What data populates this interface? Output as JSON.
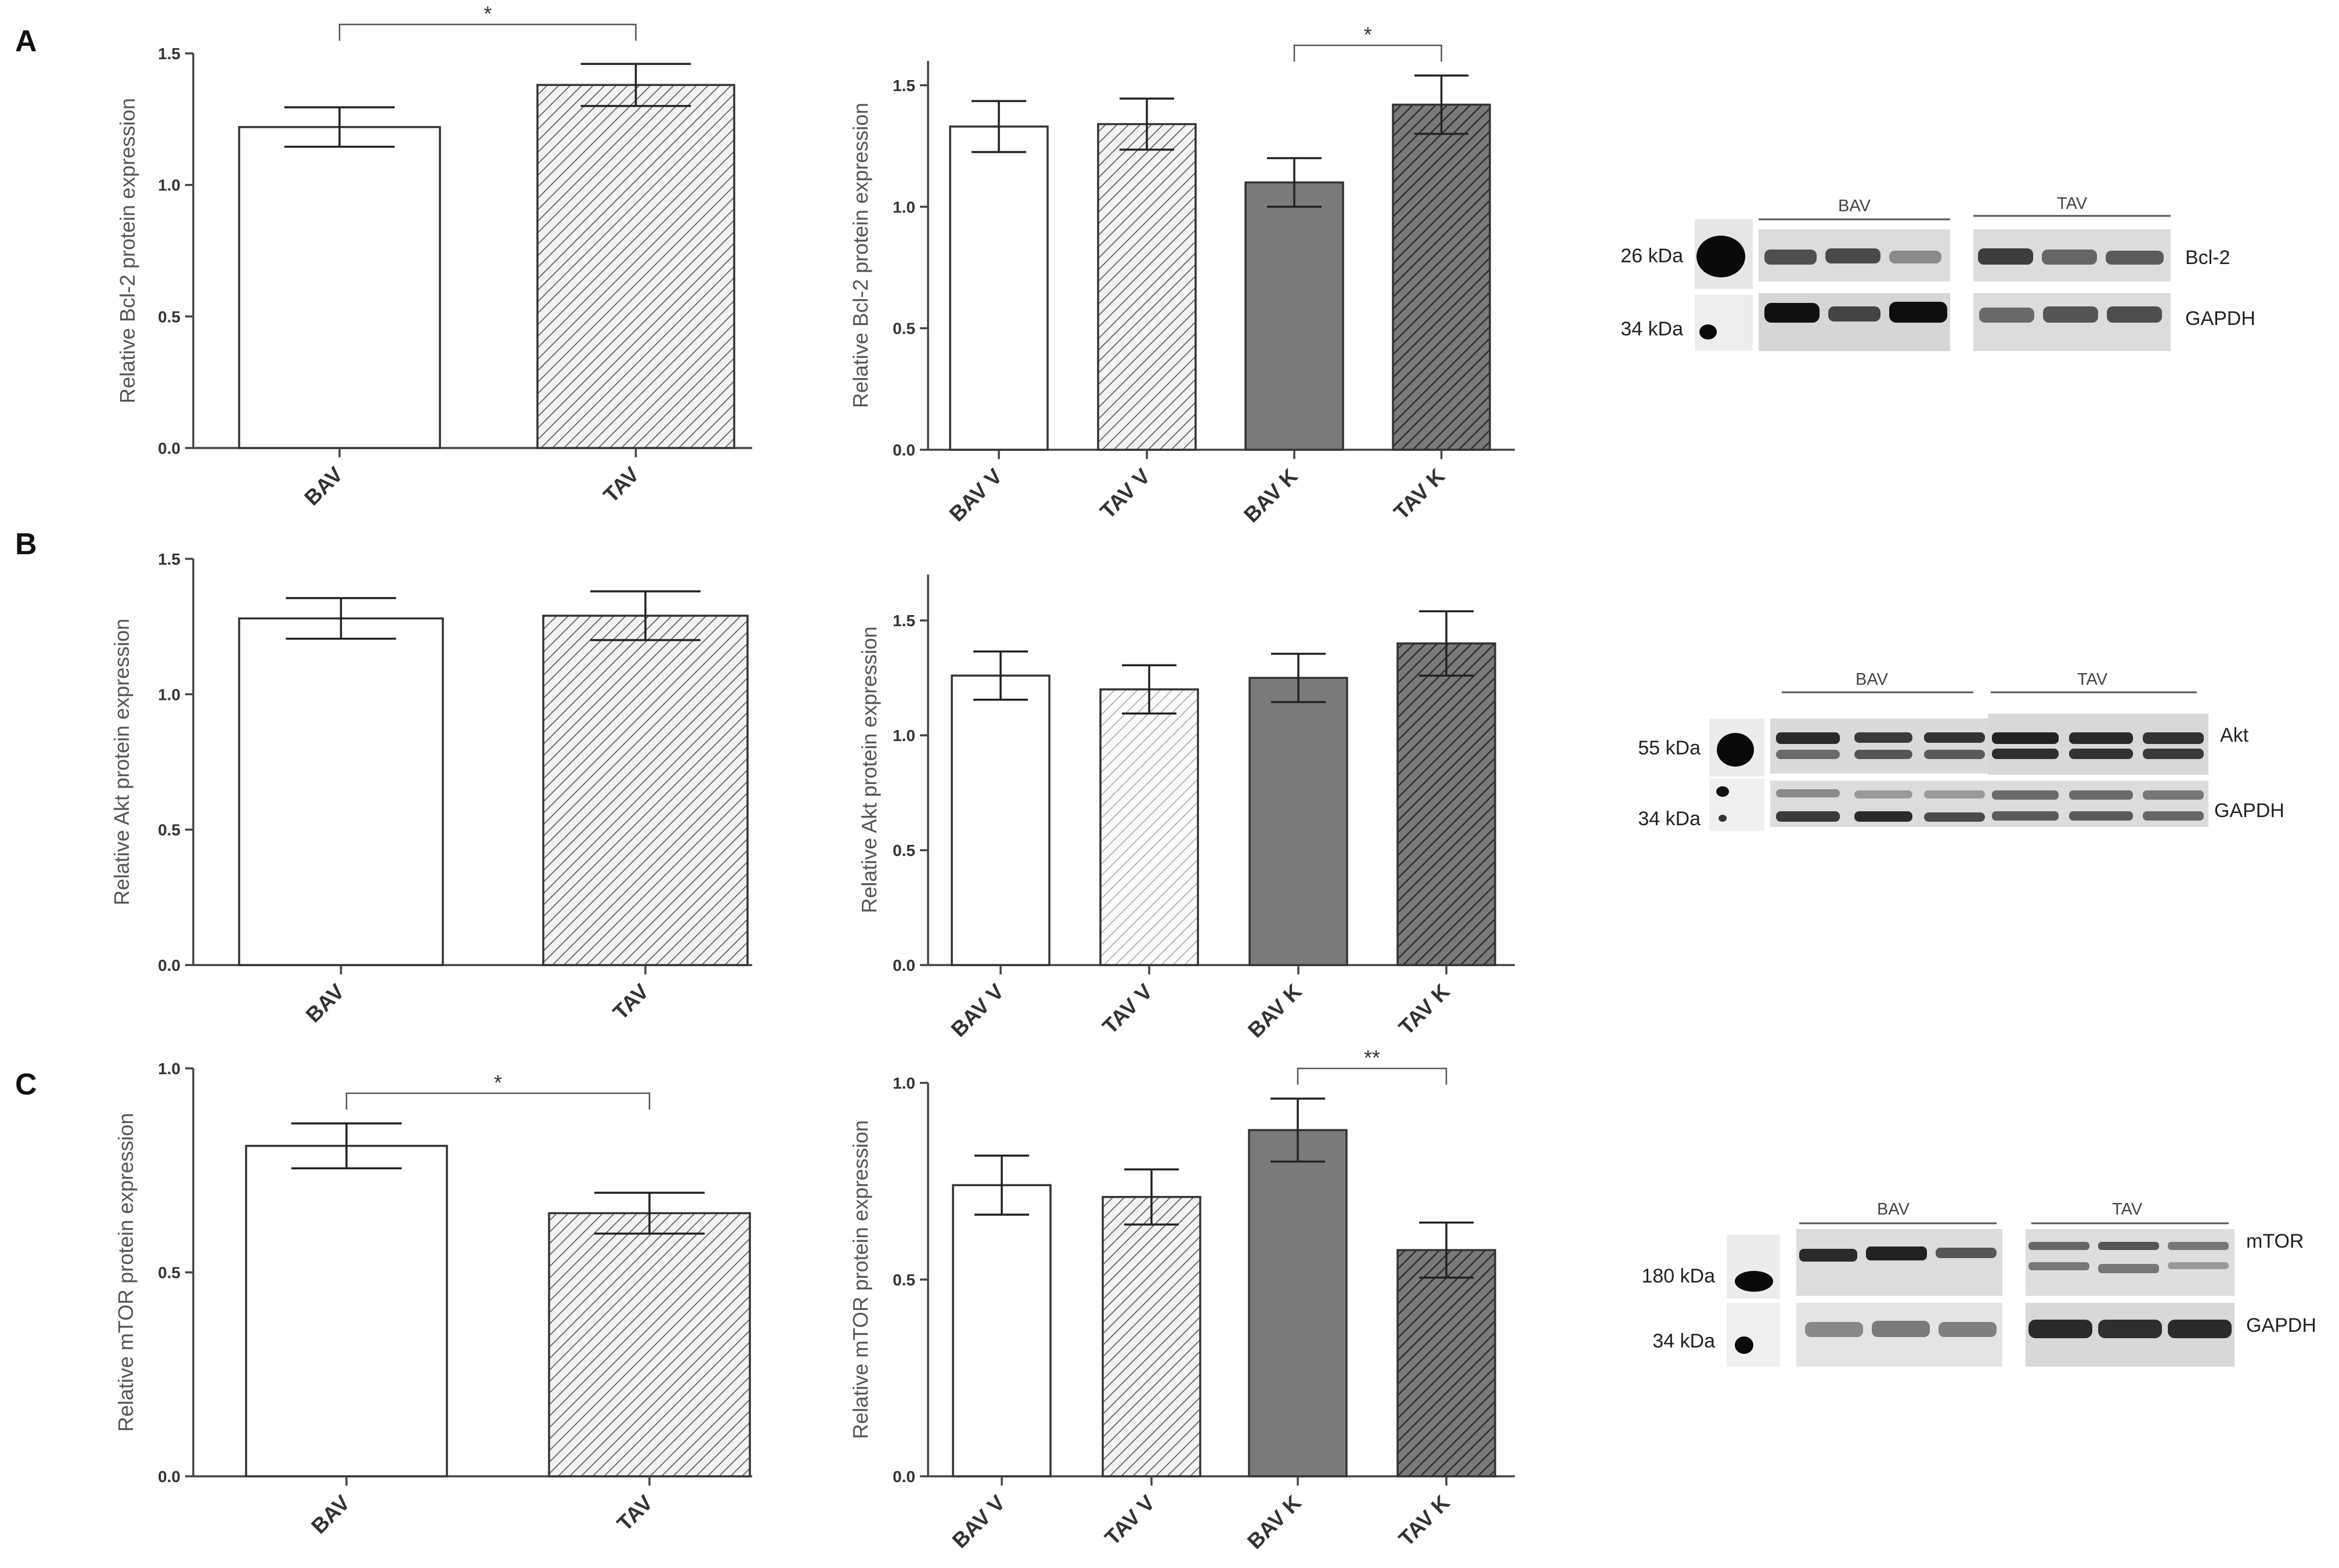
{
  "panels": [
    {
      "letter": "A",
      "charts": [
        {
          "type": "bar",
          "ylabel": "Relative Bcl-2  protein expression",
          "categories": [
            "BAV",
            "TAV"
          ],
          "values": [
            1.22,
            1.38
          ],
          "errors": [
            0.075,
            0.08
          ],
          "fills": [
            "white",
            "hatch-light"
          ],
          "ylim": [
            0,
            1.5
          ],
          "yticks": [
            "0.0",
            "0.5",
            "1.0",
            "1.5"
          ],
          "sig": [
            {
              "from": 0,
              "to": 1,
              "label": "*"
            }
          ]
        },
        {
          "type": "bar",
          "ylabel": "Relative Bcl-2  protein expression",
          "categories": [
            "BAV V",
            "TAV V",
            "BAV K",
            "TAV K"
          ],
          "values": [
            1.33,
            1.34,
            1.1,
            1.42
          ],
          "errors": [
            0.105,
            0.105,
            0.1,
            0.12
          ],
          "fills": [
            "white",
            "hatch-light",
            "gray",
            "hatch-dark"
          ],
          "ylim": [
            0,
            1.6
          ],
          "yticks": [
            "0.0",
            "0.5",
            "1.0",
            "1.5"
          ],
          "sig": [
            {
              "from": 2,
              "to": 3,
              "label": "*"
            }
          ]
        }
      ],
      "blot": {
        "groups": [
          "BAV",
          "TAV"
        ],
        "markers": [
          "26 kDa",
          "34 kDa"
        ],
        "proteins": [
          "Bcl-2",
          "GAPDH"
        ]
      }
    },
    {
      "letter": "B",
      "charts": [
        {
          "type": "bar",
          "ylabel": "Relative Akt  protein expression",
          "categories": [
            "BAV",
            "TAV"
          ],
          "values": [
            1.28,
            1.29
          ],
          "errors": [
            0.075,
            0.09
          ],
          "fills": [
            "white",
            "hatch-light"
          ],
          "ylim": [
            0,
            1.5
          ],
          "yticks": [
            "0.0",
            "0.5",
            "1.0",
            "1.5"
          ],
          "sig": []
        },
        {
          "type": "bar",
          "ylabel": "Relative Akt  protein expression",
          "categories": [
            "BAV V",
            "TAV V",
            "BAV K",
            "TAV K"
          ],
          "values": [
            1.26,
            1.2,
            1.25,
            1.4
          ],
          "errors": [
            0.105,
            0.105,
            0.105,
            0.14
          ],
          "fills": [
            "white",
            "hatch-faint",
            "gray",
            "hatch-dark"
          ],
          "ylim": [
            0,
            1.7
          ],
          "yticks": [
            "0.0",
            "0.5",
            "1.0",
            "1.5"
          ],
          "sig": []
        }
      ],
      "blot": {
        "groups": [
          "BAV",
          "TAV"
        ],
        "markers": [
          "55 kDa",
          "34 kDa"
        ],
        "proteins": [
          "Akt",
          "GAPDH"
        ]
      }
    },
    {
      "letter": "C",
      "charts": [
        {
          "type": "bar",
          "ylabel": "Relative mTOR  protein expression",
          "categories": [
            "BAV",
            "TAV"
          ],
          "values": [
            0.81,
            0.645
          ],
          "errors": [
            0.055,
            0.05
          ],
          "fills": [
            "white",
            "hatch-light"
          ],
          "ylim": [
            0,
            1.0
          ],
          "yticks": [
            "0.0",
            "0.5",
            "1.0"
          ],
          "sig": [
            {
              "from": 0,
              "to": 1,
              "label": "*"
            }
          ]
        },
        {
          "type": "bar",
          "ylabel": "Relative mTOR  protein expression",
          "categories": [
            "BAV V",
            "TAV V",
            "BAV K",
            "TAV K"
          ],
          "values": [
            0.74,
            0.71,
            0.88,
            0.575
          ],
          "errors": [
            0.075,
            0.07,
            0.08,
            0.07
          ],
          "fills": [
            "white",
            "hatch-light",
            "gray",
            "hatch-dark"
          ],
          "ylim": [
            0,
            1.0
          ],
          "yticks": [
            "0.0",
            "0.5",
            "1.0"
          ],
          "sig": [
            {
              "from": 2,
              "to": 3,
              "label": "**"
            }
          ]
        }
      ],
      "blot": {
        "groups": [
          "BAV",
          "TAV"
        ],
        "markers": [
          "180 kDa",
          "34 kDa"
        ],
        "proteins": [
          "mTOR",
          "GAPDH"
        ]
      }
    }
  ],
  "chart_data": [
    {
      "type": "bar",
      "title": "",
      "ylabel": "Relative Bcl-2  protein expression",
      "categories": [
        "BAV",
        "TAV"
      ],
      "values": [
        1.22,
        1.38
      ],
      "ylim": [
        0,
        1.5
      ]
    },
    {
      "type": "bar",
      "title": "",
      "ylabel": "Relative Bcl-2  protein expression",
      "categories": [
        "BAV V",
        "TAV V",
        "BAV K",
        "TAV K"
      ],
      "values": [
        1.33,
        1.34,
        1.1,
        1.42
      ],
      "ylim": [
        0,
        1.6
      ]
    },
    {
      "type": "bar",
      "title": "",
      "ylabel": "Relative Akt  protein expression",
      "categories": [
        "BAV",
        "TAV"
      ],
      "values": [
        1.28,
        1.29
      ],
      "ylim": [
        0,
        1.5
      ]
    },
    {
      "type": "bar",
      "title": "",
      "ylabel": "Relative Akt  protein expression",
      "categories": [
        "BAV V",
        "TAV V",
        "BAV K",
        "TAV K"
      ],
      "values": [
        1.26,
        1.2,
        1.25,
        1.4
      ],
      "ylim": [
        0,
        1.7
      ]
    },
    {
      "type": "bar",
      "title": "",
      "ylabel": "Relative mTOR  protein expression",
      "categories": [
        "BAV",
        "TAV"
      ],
      "values": [
        0.81,
        0.645
      ],
      "ylim": [
        0,
        1.0
      ]
    },
    {
      "type": "bar",
      "title": "",
      "ylabel": "Relative mTOR  protein expression",
      "categories": [
        "BAV V",
        "TAV V",
        "BAV K",
        "TAV K"
      ],
      "values": [
        0.74,
        0.71,
        0.88,
        0.575
      ],
      "ylim": [
        0,
        1.0
      ]
    }
  ]
}
